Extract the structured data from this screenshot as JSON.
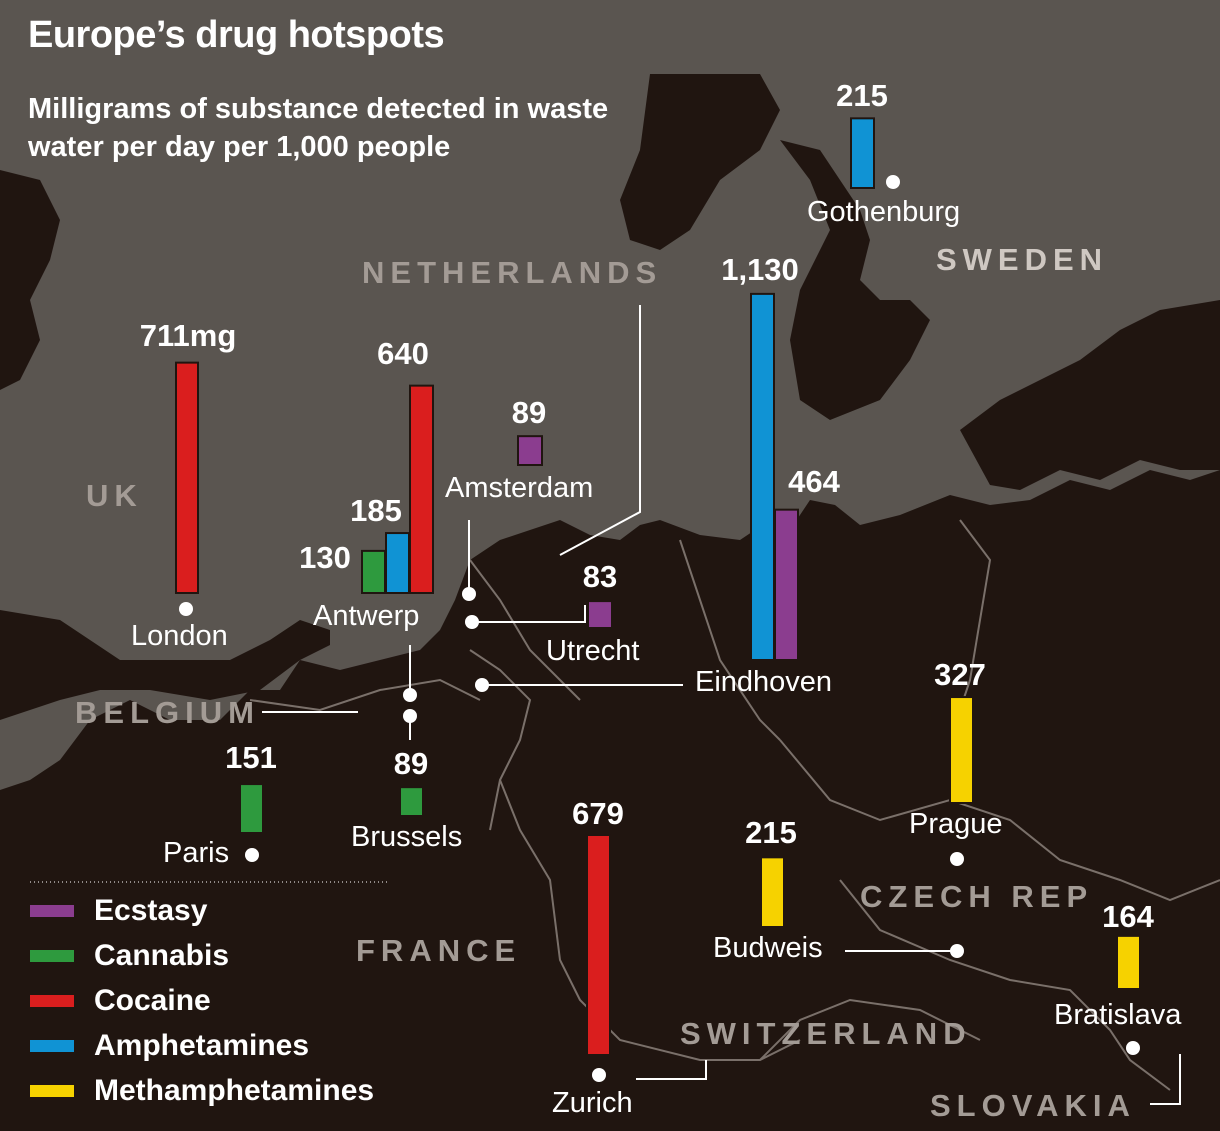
{
  "title": "Europe’s drug hotspots",
  "subtitle": "Milligrams of substance  detected in waste water per day per 1,000 people",
  "colors": {
    "header_band": "#5a5550",
    "land_light": "#5a5550",
    "land_dark": "#201510",
    "border": "#7a706a",
    "Ecstasy": "#8b3d8f",
    "Cannabis": "#2e9a3e",
    "Cocaine": "#da1e1e",
    "Amphetamines": "#1093d4",
    "Methamphetamines": "#f6d200"
  },
  "legend": [
    "Ecstasy",
    "Cannabis",
    "Cocaine",
    "Amphetamines",
    "Methamphetamines"
  ],
  "countries": [
    "UK",
    "NETHERLANDS",
    "BELGIUM",
    "FRANCE",
    "SWEDEN",
    "CZECH REP",
    "SWITZERLAND",
    "SLOVAKIA"
  ],
  "cities": [
    "London",
    "Antwerp",
    "Amsterdam",
    "Utrecht",
    "Eindhoven",
    "Brussels",
    "Paris",
    "Zurich",
    "Gothenburg",
    "Prague",
    "Budweis",
    "Bratislava"
  ],
  "chart_data": {
    "type": "bar",
    "unit": "Milligrams of substance detected in waste water per day per 1,000 people",
    "series": [
      {
        "city": "London",
        "substance": "Cocaine",
        "value": 711,
        "label": "711mg"
      },
      {
        "city": "Antwerp",
        "substance": "Cannabis",
        "value": 130,
        "label": "130"
      },
      {
        "city": "Antwerp",
        "substance": "Amphetamines",
        "value": 185,
        "label": "185"
      },
      {
        "city": "Antwerp",
        "substance": "Cocaine",
        "value": 640,
        "label": "640"
      },
      {
        "city": "Amsterdam",
        "substance": "Ecstasy",
        "value": 89,
        "label": "89"
      },
      {
        "city": "Utrecht",
        "substance": "Ecstasy",
        "value": 83,
        "label": "83"
      },
      {
        "city": "Eindhoven",
        "substance": "Amphetamines",
        "value": 1130,
        "label": "1,130"
      },
      {
        "city": "Eindhoven",
        "substance": "Ecstasy",
        "value": 464,
        "label": "464"
      },
      {
        "city": "Brussels",
        "substance": "Cannabis",
        "value": 89,
        "label": "89"
      },
      {
        "city": "Paris",
        "substance": "Cannabis",
        "value": 151,
        "label": "151"
      },
      {
        "city": "Zurich",
        "substance": "Cocaine",
        "value": 679,
        "label": "679"
      },
      {
        "city": "Gothenburg",
        "substance": "Amphetamines",
        "value": 215,
        "label": "215"
      },
      {
        "city": "Prague",
        "substance": "Methamphetamines",
        "value": 327,
        "label": "327"
      },
      {
        "city": "Budweis",
        "substance": "Methamphetamines",
        "value": 215,
        "label": "215"
      },
      {
        "city": "Bratislava",
        "substance": "Methamphetamines",
        "value": 164,
        "label": "164"
      }
    ]
  }
}
